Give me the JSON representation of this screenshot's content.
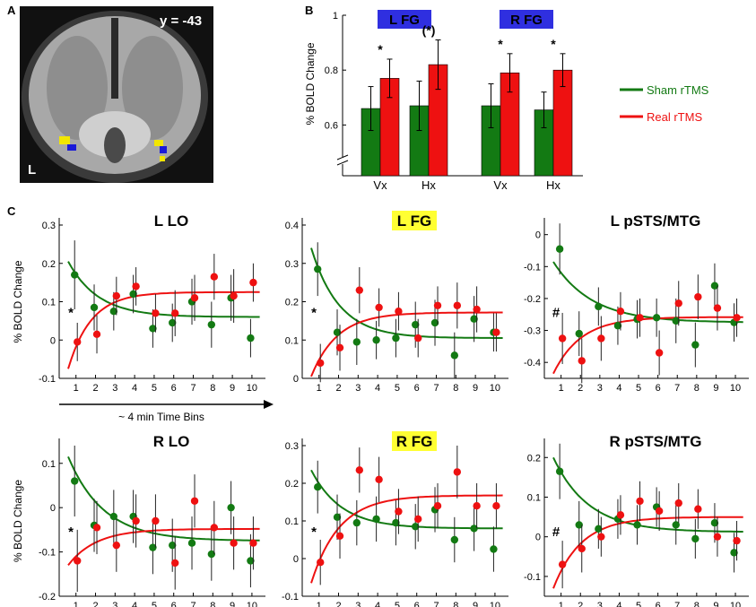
{
  "panels": {
    "a": "A",
    "b": "B",
    "c": "C"
  },
  "brain": {
    "label": "y = -43",
    "side": "L",
    "blob_colors": {
      "yellow": "#f2e600",
      "blue": "#1a1ad8"
    }
  },
  "colors": {
    "sham": "#137a13",
    "real": "#ee1111",
    "label_blue": "#2f2fe0",
    "label_yellow": "#ffff33"
  },
  "legend": {
    "sham": "Sham rTMS",
    "real": "Real rTMS"
  },
  "time_axis_label": "~ 4 min Time Bins",
  "chart_data": [
    {
      "id": "b",
      "type": "bar",
      "title": "",
      "ylabel": "% BOLD Change",
      "ylim": [
        0.5,
        1.0
      ],
      "yticks": [
        0.6,
        0.8,
        1
      ],
      "ytick_labels": [
        "0.6",
        "0.8",
        "1"
      ],
      "axis_break": true,
      "groups": [
        {
          "label": "L FG",
          "categories": [
            "Vx",
            "Hx"
          ],
          "sham": [
            0.66,
            0.67
          ],
          "sham_err": [
            0.08,
            0.09
          ],
          "real": [
            0.77,
            0.82
          ],
          "real_err": [
            0.07,
            0.09
          ],
          "significance": [
            "*",
            "(*)"
          ]
        },
        {
          "label": "R FG",
          "categories": [
            "Vx",
            "Hx"
          ],
          "sham": [
            0.67,
            0.655
          ],
          "sham_err": [
            0.08,
            0.065
          ],
          "real": [
            0.79,
            0.8
          ],
          "real_err": [
            0.07,
            0.06
          ],
          "significance": [
            "*",
            "*"
          ]
        }
      ]
    },
    {
      "id": "llo",
      "type": "scatter",
      "title": "L LO",
      "highlight": false,
      "ylabel": "% BOLD Change",
      "ylim": [
        -0.1,
        0.3
      ],
      "yticks": [
        -0.1,
        0,
        0.1,
        0.2,
        0.3
      ],
      "ytick_labels": [
        "-0.1",
        "0",
        "0.1",
        "0.2",
        "0.3"
      ],
      "x": [
        1,
        2,
        3,
        4,
        5,
        6,
        7,
        8,
        9,
        10
      ],
      "mark": "*",
      "series": [
        {
          "name": "Sham rTMS",
          "values": [
            0.17,
            0.085,
            0.075,
            0.12,
            0.03,
            0.045,
            0.1,
            0.04,
            0.11,
            0.005
          ],
          "errors": [
            0.09,
            0.06,
            0.05,
            0.05,
            0.05,
            0.05,
            0.06,
            0.06,
            0.06,
            0.05
          ],
          "fit_start": 0.205,
          "fit_end": 0.06,
          "fit_rate": 0.65
        },
        {
          "name": "Real rTMS",
          "values": [
            -0.005,
            0.015,
            0.115,
            0.14,
            0.07,
            0.07,
            0.11,
            0.165,
            0.115,
            0.15
          ],
          "errors": [
            0.05,
            0.05,
            0.05,
            0.05,
            0.05,
            0.06,
            0.06,
            0.06,
            0.07,
            0.05
          ],
          "fit_start": -0.075,
          "fit_end": 0.125,
          "fit_rate": 0.85
        }
      ]
    },
    {
      "id": "lfg",
      "type": "scatter",
      "title": "L FG",
      "highlight": true,
      "ylabel": "",
      "ylim": [
        0,
        0.4
      ],
      "yticks": [
        0,
        0.1,
        0.2,
        0.3,
        0.4
      ],
      "ytick_labels": [
        "0",
        "0.1",
        "0.2",
        "0.3",
        "0.4"
      ],
      "x": [
        1,
        2,
        3,
        4,
        5,
        6,
        7,
        8,
        9,
        10
      ],
      "mark": "*",
      "series": [
        {
          "name": "Sham rTMS",
          "values": [
            0.285,
            0.12,
            0.095,
            0.1,
            0.105,
            0.14,
            0.145,
            0.06,
            0.155,
            0.12
          ],
          "errors": [
            0.07,
            0.06,
            0.06,
            0.05,
            0.05,
            0.06,
            0.06,
            0.06,
            0.06,
            0.05
          ],
          "fit_start": 0.34,
          "fit_end": 0.105,
          "fit_rate": 0.7
        },
        {
          "name": "Real rTMS",
          "values": [
            0.04,
            0.08,
            0.23,
            0.185,
            0.175,
            0.105,
            0.19,
            0.19,
            0.18,
            0.12
          ],
          "errors": [
            0.05,
            0.06,
            0.06,
            0.05,
            0.05,
            0.05,
            0.05,
            0.06,
            0.06,
            0.05
          ],
          "fit_start": 0.005,
          "fit_end": 0.172,
          "fit_rate": 0.75
        }
      ]
    },
    {
      "id": "lsts",
      "type": "scatter",
      "title": "L pSTS/MTG",
      "highlight": false,
      "ylabel": "",
      "ylim": [
        -0.45,
        0.03
      ],
      "yticks": [
        -0.4,
        -0.3,
        -0.2,
        -0.1,
        0
      ],
      "ytick_labels": [
        "-0.4",
        "-0.3",
        "-0.2",
        "-0.1",
        "0"
      ],
      "x": [
        1,
        2,
        3,
        4,
        5,
        6,
        7,
        8,
        9,
        10
      ],
      "mark": "#",
      "series": [
        {
          "name": "Sham rTMS",
          "values": [
            -0.045,
            -0.31,
            -0.225,
            -0.285,
            -0.265,
            -0.26,
            -0.27,
            -0.345,
            -0.16,
            -0.275
          ],
          "errors": [
            0.08,
            0.07,
            0.06,
            0.06,
            0.06,
            0.06,
            0.07,
            0.07,
            0.07,
            0.06
          ],
          "fit_start": -0.085,
          "fit_end": -0.275,
          "fit_rate": 0.5
        },
        {
          "name": "Real rTMS",
          "values": [
            -0.325,
            -0.395,
            -0.325,
            -0.24,
            -0.26,
            -0.37,
            -0.215,
            -0.195,
            -0.23,
            -0.26
          ],
          "errors": [
            0.08,
            0.07,
            0.07,
            0.06,
            0.06,
            0.07,
            0.07,
            0.07,
            0.07,
            0.06
          ],
          "fit_start": -0.435,
          "fit_end": -0.258,
          "fit_rate": 0.7
        }
      ]
    },
    {
      "id": "rlo",
      "type": "scatter",
      "title": "R LO",
      "highlight": false,
      "ylabel": "% BOLD Change",
      "ylim": [
        -0.2,
        0.14
      ],
      "yticks": [
        -0.2,
        -0.1,
        0,
        0.1
      ],
      "ytick_labels": [
        "-0.2",
        "-0.1",
        "0",
        "0.1"
      ],
      "x": [
        1,
        2,
        3,
        4,
        5,
        6,
        7,
        8,
        9,
        10
      ],
      "mark": "*",
      "series": [
        {
          "name": "Sham rTMS",
          "values": [
            0.06,
            -0.04,
            -0.02,
            -0.02,
            -0.09,
            -0.085,
            -0.08,
            -0.105,
            0.0,
            -0.12
          ],
          "errors": [
            0.08,
            0.06,
            0.06,
            0.06,
            0.06,
            0.06,
            0.06,
            0.06,
            0.06,
            0.06
          ],
          "fit_start": 0.115,
          "fit_end": -0.075,
          "fit_rate": 0.55
        },
        {
          "name": "Real rTMS",
          "values": [
            -0.12,
            -0.045,
            -0.085,
            -0.03,
            -0.03,
            -0.125,
            0.015,
            -0.045,
            -0.08,
            -0.08
          ],
          "errors": [
            0.07,
            0.06,
            0.06,
            0.06,
            0.06,
            0.06,
            0.06,
            0.06,
            0.06,
            0.06
          ],
          "fit_start": -0.13,
          "fit_end": -0.048,
          "fit_rate": 0.7
        }
      ]
    },
    {
      "id": "rfg",
      "type": "scatter",
      "title": "R FG",
      "highlight": true,
      "ylabel": "",
      "ylim": [
        -0.1,
        0.3
      ],
      "yticks": [
        -0.1,
        0,
        0.1,
        0.2,
        0.3
      ],
      "ytick_labels": [
        "-0.1",
        "0",
        "0.1",
        "0.2",
        "0.3"
      ],
      "x": [
        1,
        2,
        3,
        4,
        5,
        6,
        7,
        8,
        9,
        10
      ],
      "mark": "*",
      "series": [
        {
          "name": "Sham rTMS",
          "values": [
            0.19,
            0.11,
            0.095,
            0.105,
            0.095,
            0.085,
            0.13,
            0.05,
            0.08,
            0.025
          ],
          "errors": [
            0.07,
            0.06,
            0.06,
            0.06,
            0.06,
            0.06,
            0.06,
            0.06,
            0.06,
            0.06
          ],
          "fit_start": 0.235,
          "fit_end": 0.08,
          "fit_rate": 0.65
        },
        {
          "name": "Real rTMS",
          "values": [
            -0.01,
            0.06,
            0.235,
            0.21,
            0.125,
            0.105,
            0.14,
            0.23,
            0.14,
            0.14
          ],
          "errors": [
            0.06,
            0.06,
            0.06,
            0.06,
            0.06,
            0.06,
            0.06,
            0.07,
            0.06,
            0.06
          ],
          "fit_start": -0.065,
          "fit_end": 0.168,
          "fit_rate": 0.7
        }
      ]
    },
    {
      "id": "rsts",
      "type": "scatter",
      "title": "R pSTS/MTG",
      "highlight": false,
      "ylabel": "",
      "ylim": [
        -0.15,
        0.23
      ],
      "yticks": [
        -0.1,
        0,
        0.1,
        0.2
      ],
      "ytick_labels": [
        "-0.1",
        "0",
        "0.1",
        "0.2"
      ],
      "x": [
        1,
        2,
        3,
        4,
        5,
        6,
        7,
        8,
        9,
        10
      ],
      "mark": "#",
      "series": [
        {
          "name": "Sham rTMS",
          "values": [
            0.165,
            0.03,
            0.02,
            0.045,
            0.03,
            0.075,
            0.03,
            -0.005,
            0.035,
            -0.04
          ],
          "errors": [
            0.07,
            0.06,
            0.05,
            0.05,
            0.05,
            0.05,
            0.05,
            0.05,
            0.05,
            0.05
          ],
          "fit_start": 0.2,
          "fit_end": 0.012,
          "fit_rate": 0.55
        },
        {
          "name": "Real rTMS",
          "values": [
            -0.07,
            -0.03,
            0.0,
            0.055,
            0.09,
            0.065,
            0.085,
            0.07,
            0.0,
            -0.01
          ],
          "errors": [
            0.06,
            0.06,
            0.05,
            0.05,
            0.05,
            0.05,
            0.05,
            0.05,
            0.05,
            0.05
          ],
          "fit_start": -0.13,
          "fit_end": 0.05,
          "fit_rate": 0.7
        }
      ]
    }
  ]
}
